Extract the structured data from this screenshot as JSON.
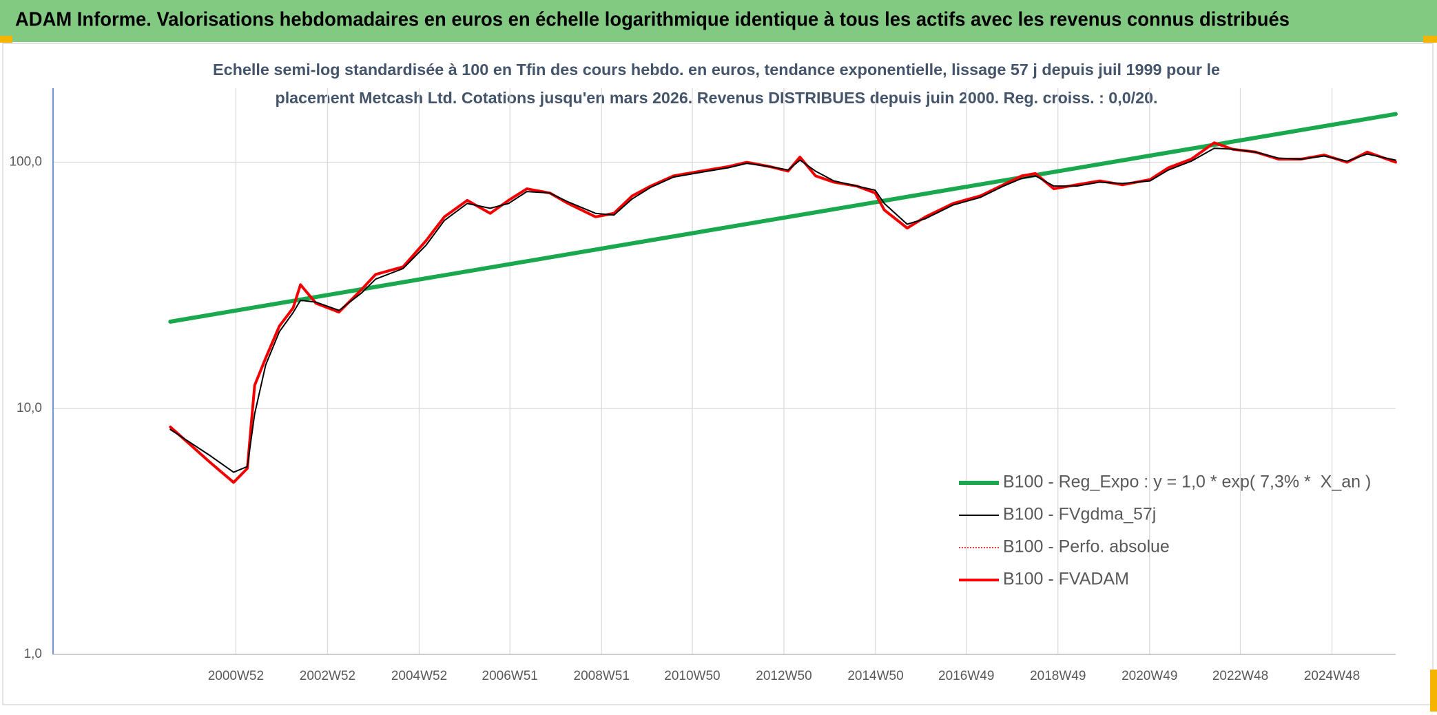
{
  "chart_data": {
    "type": "line",
    "title": "ADAM Informe. Valorisations hebdomadaires en euros en échelle logarithmique identique à tous les actifs avec les revenus connus distribués",
    "subtitle": [
      "Echelle semi-log standardisée à 100 en Tfin des cours hebdo. en euros, tendance exponentielle, lissage 57 j depuis juil 1999 pour le",
      "placement Metcash Ltd. Cotations jusqu'en mars 2026. Revenus DISTRIBUES depuis juin 2000. Reg. croiss. : 0,0/20."
    ],
    "log_y": true,
    "grid": true,
    "legend_position": "right",
    "xlim": [
      1997,
      2026.3
    ],
    "ylim": [
      1,
      200
    ],
    "yticks": [
      {
        "value": 1,
        "label": "1,0"
      },
      {
        "value": 10,
        "label": "10,0"
      },
      {
        "value": 100,
        "label": "100,0"
      }
    ],
    "xticks": [
      {
        "value": 2000.99,
        "label": "2000W52"
      },
      {
        "value": 2002.99,
        "label": "2002W52"
      },
      {
        "value": 2004.99,
        "label": "2004W52"
      },
      {
        "value": 2006.97,
        "label": "2006W51"
      },
      {
        "value": 2008.97,
        "label": "2008W51"
      },
      {
        "value": 2010.95,
        "label": "2010W50"
      },
      {
        "value": 2012.95,
        "label": "2012W50"
      },
      {
        "value": 2014.95,
        "label": "2014W50"
      },
      {
        "value": 2016.93,
        "label": "2016W49"
      },
      {
        "value": 2018.93,
        "label": "2018W49"
      },
      {
        "value": 2020.93,
        "label": "2020W49"
      },
      {
        "value": 2022.91,
        "label": "2022W48"
      },
      {
        "value": 2024.91,
        "label": "2024W48"
      }
    ],
    "series": [
      {
        "name": "B100 - Reg_Expo : y = 1,0 * exp( 7,3% *  X_an )",
        "color": "#1aa84f",
        "style": "solid",
        "width": 6,
        "x": [
          1999.56,
          2026.3
        ],
        "values": [
          22.5,
          157
        ]
      },
      {
        "name": "B100 - FVgdma_57j",
        "color": "#000000",
        "style": "solid",
        "width": 2,
        "x": [
          1999.56,
          2000.44,
          2000.94,
          2001.24,
          2001.4,
          2001.64,
          2001.94,
          2002.24,
          2002.4,
          2002.74,
          2003.24,
          2003.74,
          2004.04,
          2004.64,
          2005.14,
          2005.54,
          2006.04,
          2006.54,
          2006.94,
          2007.34,
          2007.84,
          2008.24,
          2008.84,
          2009.24,
          2009.64,
          2010.04,
          2010.54,
          2011.14,
          2011.74,
          2012.14,
          2012.64,
          2013.04,
          2013.3,
          2013.64,
          2014.04,
          2014.54,
          2014.94,
          2015.14,
          2015.64,
          2016.04,
          2016.64,
          2017.24,
          2017.74,
          2018.14,
          2018.44,
          2018.84,
          2019.34,
          2019.84,
          2020.34,
          2020.94,
          2021.34,
          2021.84,
          2022.34,
          2022.74,
          2023.24,
          2023.74,
          2024.24,
          2024.74,
          2025.24,
          2025.68,
          2026.3
        ],
        "values": [
          8.2,
          6.4,
          5.5,
          5.8,
          9.5,
          15,
          20.5,
          24.5,
          27.5,
          27,
          25,
          29.5,
          33.5,
          37,
          46,
          58,
          68,
          65,
          68,
          76,
          75,
          69,
          62,
          61,
          71,
          79,
          87,
          91,
          95,
          99,
          96,
          93,
          102,
          92,
          84,
          80,
          77,
          68,
          56,
          59,
          67,
          72,
          80,
          86,
          88,
          80,
          80,
          83,
          82,
          84,
          93,
          101,
          114,
          113,
          110,
          104,
          103,
          106,
          101,
          108,
          102
        ]
      },
      {
        "name": "B100 - Perfo. absolue",
        "color": "#e00000",
        "style": "dotted",
        "width": 1.5,
        "x": [
          1999.56,
          2000.44,
          2000.94,
          2001.24,
          2001.4,
          2001.64,
          2001.94,
          2002.24,
          2002.4,
          2002.74,
          2003.24,
          2003.74,
          2004.04,
          2004.64,
          2005.14,
          2005.54,
          2006.04,
          2006.54,
          2006.94,
          2007.34,
          2007.84,
          2008.24,
          2008.84,
          2009.24,
          2009.64,
          2010.04,
          2010.54,
          2011.14,
          2011.74,
          2012.14,
          2012.64,
          2013.04,
          2013.3,
          2013.64,
          2014.04,
          2014.54,
          2014.94,
          2015.14,
          2015.64,
          2016.04,
          2016.64,
          2017.24,
          2017.74,
          2018.14,
          2018.44,
          2018.84,
          2019.34,
          2019.84,
          2020.34,
          2020.94,
          2021.34,
          2021.84,
          2022.34,
          2022.74,
          2023.24,
          2023.74,
          2024.24,
          2024.74,
          2025.24,
          2025.68,
          2026.3
        ],
        "values": [
          8.4,
          6.0,
          5.0,
          5.7,
          12.4,
          16,
          21.6,
          25.6,
          31.8,
          26.7,
          24.6,
          30.5,
          35,
          37.6,
          48,
          60,
          70,
          62,
          70,
          78,
          75,
          68,
          60,
          62,
          73,
          80,
          88,
          92,
          96,
          100,
          96,
          92,
          105,
          88,
          83,
          80,
          75,
          64,
          54,
          60,
          68,
          73,
          81,
          88,
          90,
          78,
          81,
          84,
          81,
          85,
          95,
          103,
          120,
          113,
          110,
          103,
          103,
          107,
          100,
          110,
          100
        ]
      },
      {
        "name": "B100 - FVADAM",
        "color": "#ff0000",
        "style": "solid",
        "width": 4,
        "x": [
          1999.56,
          2000.44,
          2000.94,
          2001.24,
          2001.4,
          2001.64,
          2001.94,
          2002.24,
          2002.4,
          2002.74,
          2003.24,
          2003.74,
          2004.04,
          2004.64,
          2005.14,
          2005.54,
          2006.04,
          2006.54,
          2006.94,
          2007.34,
          2007.84,
          2008.24,
          2008.84,
          2009.24,
          2009.64,
          2010.04,
          2010.54,
          2011.14,
          2011.74,
          2012.14,
          2012.64,
          2013.04,
          2013.3,
          2013.64,
          2014.04,
          2014.54,
          2014.94,
          2015.14,
          2015.64,
          2016.04,
          2016.64,
          2017.24,
          2017.74,
          2018.14,
          2018.44,
          2018.84,
          2019.34,
          2019.84,
          2020.34,
          2020.94,
          2021.34,
          2021.84,
          2022.34,
          2022.74,
          2023.24,
          2023.74,
          2024.24,
          2024.74,
          2025.24,
          2025.68,
          2026.3
        ],
        "values": [
          8.4,
          6.0,
          5.0,
          5.7,
          12.4,
          16,
          21.6,
          25.6,
          31.8,
          26.7,
          24.6,
          30.5,
          35,
          37.6,
          48,
          60,
          70,
          62,
          70,
          78,
          75,
          68,
          60,
          62,
          73,
          80,
          88,
          92,
          96,
          100,
          96,
          92,
          105,
          88,
          83,
          80,
          75,
          64,
          54,
          60,
          68,
          73,
          81,
          88,
          90,
          78,
          81,
          84,
          81,
          85,
          95,
          103,
          120,
          113,
          110,
          103,
          103,
          107,
          100,
          110,
          100
        ]
      }
    ]
  }
}
